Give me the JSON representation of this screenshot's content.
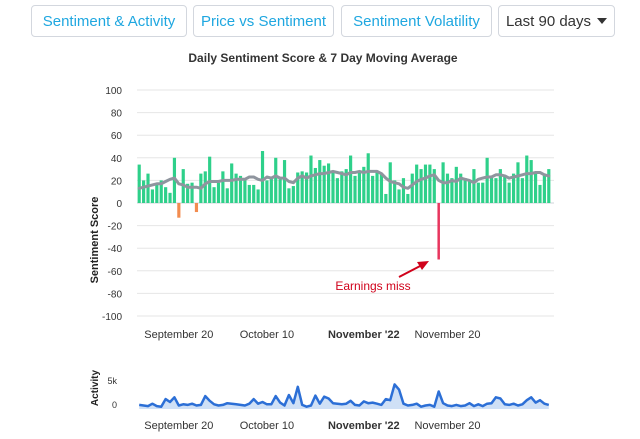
{
  "tabs": [
    {
      "label": "Sentiment & Activity"
    },
    {
      "label": "Price vs Sentiment"
    },
    {
      "label": "Sentiment Volatility"
    }
  ],
  "range_select": {
    "label": "Last 90 days"
  },
  "colors": {
    "accent": "#1fa7e0",
    "positive": "#2ed08a",
    "negative": "#f28c4f",
    "highlight": "#e8365e",
    "ma_line": "#8f959e",
    "activity": "#2c6fd6",
    "annotation": "#d0021b"
  },
  "chart_data": [
    {
      "type": "bar",
      "title": "Daily Sentiment Score & 7 Day Moving Average",
      "ylabel": "Sentiment Score",
      "ylim": [
        -100,
        100
      ],
      "yticks": [
        100,
        80,
        60,
        40,
        20,
        0,
        -20,
        -40,
        -60,
        -80,
        -100
      ],
      "xticks": [
        {
          "label": "September 20",
          "day": 9,
          "bold": false
        },
        {
          "label": "October 10",
          "day": 29,
          "bold": false
        },
        {
          "label": "November '22",
          "day": 51,
          "bold": true
        },
        {
          "label": "November 20",
          "day": 70,
          "bold": false
        }
      ],
      "series": [
        {
          "name": "Daily Sentiment Score",
          "values": [
            34,
            20,
            26,
            12,
            17,
            20,
            14,
            9,
            40,
            -13,
            30,
            17,
            18,
            -8,
            26,
            28,
            41,
            14,
            18,
            28,
            13,
            35,
            26,
            24,
            21,
            16,
            16,
            12,
            46,
            20,
            22,
            40,
            21,
            38,
            13,
            15,
            27,
            28,
            27,
            42,
            31,
            38,
            33,
            35,
            28,
            22,
            28,
            30,
            42,
            24,
            28,
            32,
            44,
            24,
            28,
            26,
            8,
            36,
            20,
            12,
            22,
            8,
            26,
            34,
            30,
            34,
            34,
            30,
            -50,
            36,
            26,
            22,
            32,
            26,
            22,
            20,
            30,
            18,
            18,
            40,
            24,
            22,
            30,
            24,
            18,
            26,
            36,
            22,
            42,
            38,
            27,
            16,
            26,
            30
          ]
        },
        {
          "name": "7 Day Moving Average",
          "values": [
            13,
            14,
            15,
            16,
            17,
            17,
            19,
            21,
            22,
            17,
            16,
            14,
            14,
            14,
            13,
            17,
            19,
            19,
            19,
            20,
            20,
            20,
            21,
            21,
            21,
            23,
            23,
            21,
            20,
            23,
            22,
            24,
            22,
            22,
            19,
            18,
            22,
            24,
            22,
            24,
            25,
            26,
            26,
            27,
            28,
            27,
            26,
            25,
            27,
            27,
            28,
            27,
            28,
            28,
            28,
            26,
            22,
            19,
            18,
            17,
            14,
            13,
            16,
            19,
            21,
            22,
            24,
            25,
            20,
            18,
            18,
            20,
            19,
            22,
            21,
            20,
            18,
            21,
            22,
            23,
            23,
            25,
            25,
            24,
            22,
            23,
            24,
            25,
            26,
            26,
            27,
            27,
            25,
            24
          ]
        }
      ],
      "annotations": [
        {
          "text": "Earnings miss",
          "day": 68,
          "value": -50
        }
      ]
    },
    {
      "type": "area",
      "ylabel": "Activity",
      "yticks": [
        "5k",
        "0"
      ],
      "ylim": [
        0,
        6500
      ],
      "xticks": [
        {
          "label": "September 20",
          "day": 9,
          "bold": false
        },
        {
          "label": "October 10",
          "day": 29,
          "bold": false
        },
        {
          "label": "November '22",
          "day": 51,
          "bold": true
        },
        {
          "label": "November 20",
          "day": 70,
          "bold": false
        }
      ],
      "series": [
        {
          "name": "Activity",
          "values": [
            700,
            600,
            500,
            900,
            500,
            400,
            1700,
            1200,
            2000,
            600,
            800,
            700,
            900,
            600,
            700,
            2200,
            1400,
            800,
            600,
            700,
            1000,
            900,
            800,
            700,
            600,
            900,
            1700,
            900,
            1200,
            800,
            800,
            2200,
            1100,
            600,
            2400,
            1000,
            3800,
            700,
            400,
            600,
            2300,
            900,
            2100,
            1800,
            1000,
            900,
            800,
            900,
            1400,
            700,
            600,
            1300,
            1000,
            1100,
            900,
            700,
            1700,
            1500,
            4200,
            3300,
            900,
            600,
            700,
            900,
            400,
            600,
            700,
            400,
            3000,
            1000,
            600,
            500,
            700,
            500,
            600,
            1000,
            500,
            800,
            500,
            900,
            1000,
            2000,
            1800,
            800,
            700,
            900,
            600,
            800,
            1500,
            2000,
            1100,
            1500,
            900,
            700
          ]
        }
      ]
    }
  ]
}
